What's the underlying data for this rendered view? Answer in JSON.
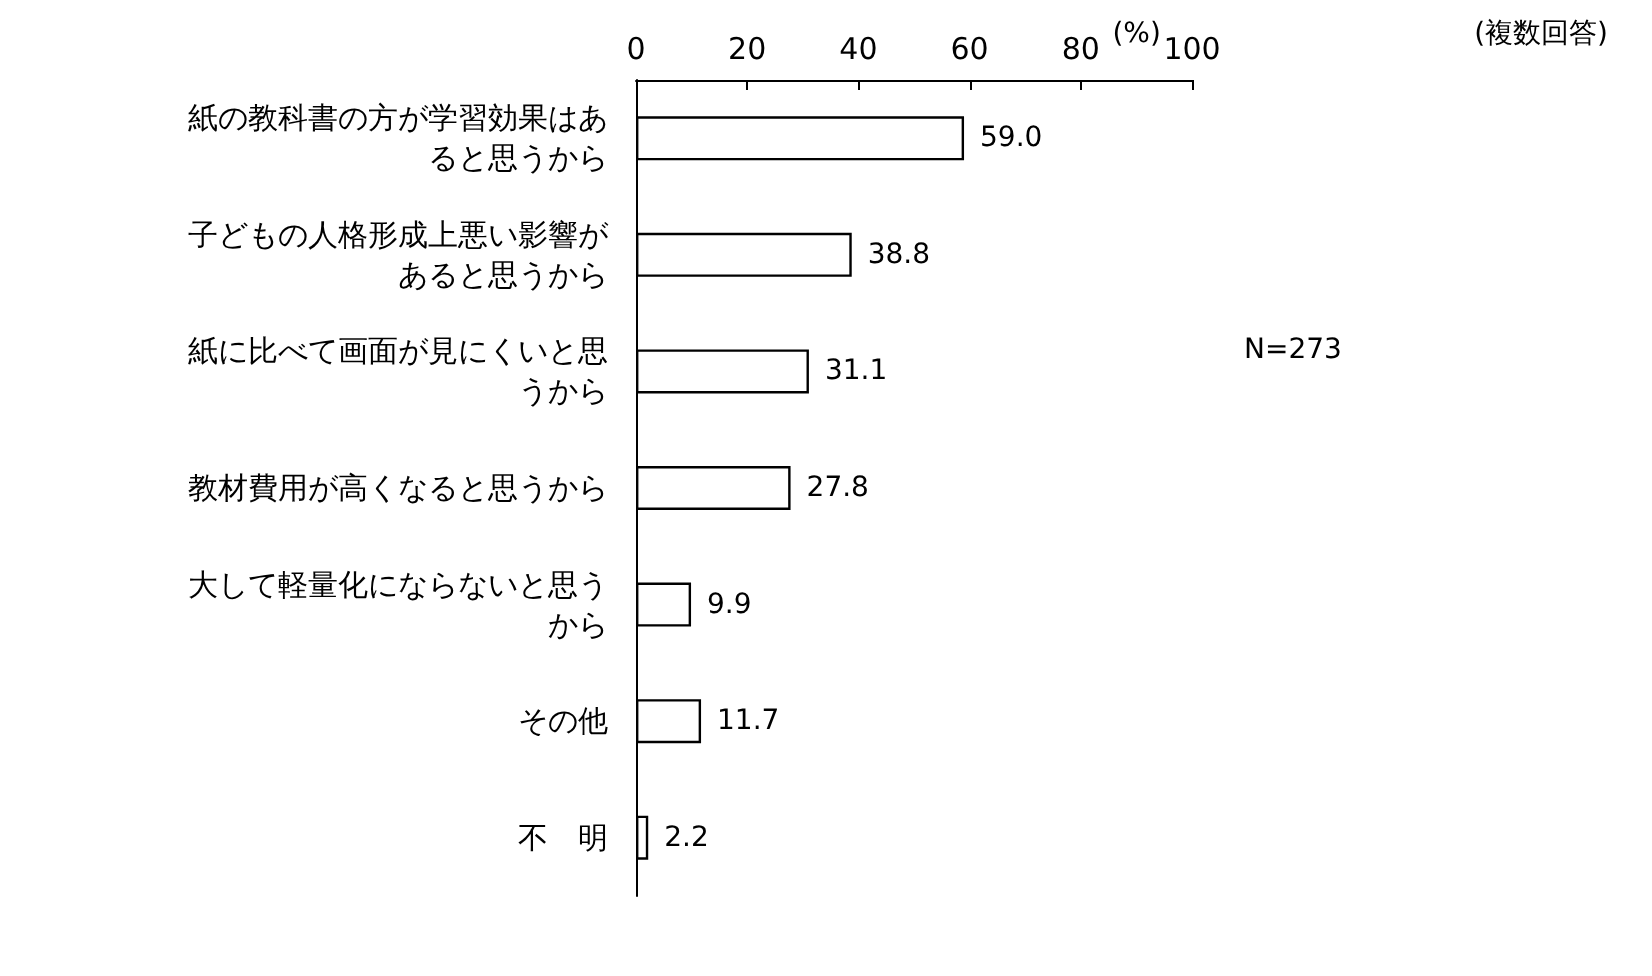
{
  "chart_data": {
    "type": "bar",
    "orientation": "horizontal",
    "categories": [
      "紙の教科書の方が学習効果はあると思うから",
      "子どもの人格形成上悪い影響があると思うから",
      "紙に比べて画面が見にくいと思うから",
      "教材費用が高くなると思うから",
      "大して軽量化にならないと思うから",
      "その他",
      "不　明"
    ],
    "values": [
      59.0,
      38.8,
      31.1,
      27.8,
      9.9,
      11.7,
      2.2
    ],
    "value_labels": [
      "59.0",
      "38.8",
      "31.1",
      "27.8",
      "9.9",
      "11.7",
      "2.2"
    ],
    "color": "#ffffff",
    "xlabel": "(%)",
    "xlim": [
      0,
      100
    ],
    "xticks": [
      0,
      20,
      40,
      60,
      80,
      100
    ],
    "grid": false,
    "annotations": [
      "(複数回答)",
      "N=273"
    ]
  }
}
